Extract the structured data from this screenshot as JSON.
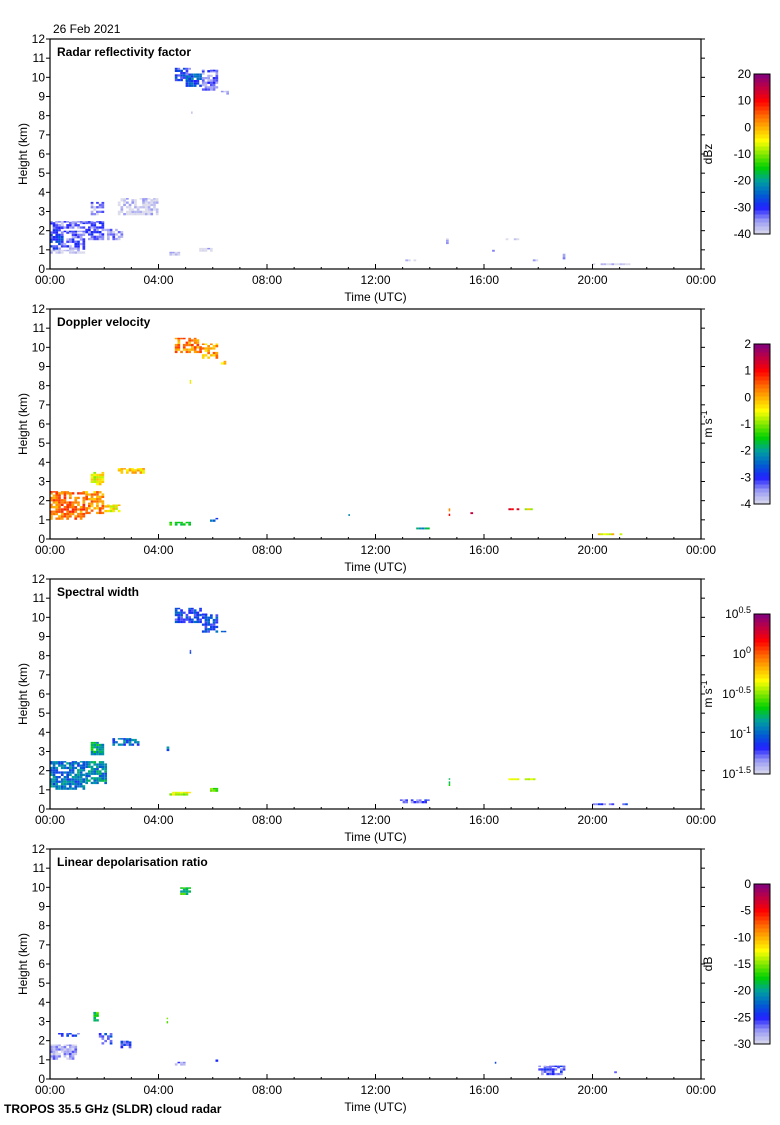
{
  "header": {
    "date": "26 Feb 2021"
  },
  "footer": {
    "instrument": "TROPOS 35.5 GHz (SLDR) cloud radar"
  },
  "colormap": [
    "#dcdcec",
    "#9c9cf4",
    "#2020ff",
    "#0060d0",
    "#00a0a0",
    "#00d000",
    "#80e800",
    "#ffff00",
    "#ffb000",
    "#ff6000",
    "#ff0000",
    "#c00040",
    "#800080"
  ],
  "chart_data": [
    {
      "type": "heatmap",
      "title": "Radar reflectivity factor",
      "xlabel": "Time (UTC)",
      "ylabel": "Height (km)",
      "xlim": [
        0,
        24
      ],
      "ylim": [
        0,
        12
      ],
      "xticks": [
        "00:00",
        "04:00",
        "08:00",
        "12:00",
        "16:00",
        "20:00",
        "00:00"
      ],
      "yticks": [
        "0",
        "1",
        "2",
        "3",
        "4",
        "5",
        "6",
        "7",
        "8",
        "9",
        "10",
        "11",
        "12"
      ],
      "colorbar": {
        "unit": "dBz",
        "unit_sup": "",
        "range": [
          -40,
          20
        ],
        "ticks": [
          {
            "b": "20",
            "e": ""
          },
          {
            "b": "10",
            "e": ""
          },
          {
            "b": "0",
            "e": ""
          },
          {
            "b": "-10",
            "e": ""
          },
          {
            "b": "-20",
            "e": ""
          },
          {
            "b": "-30",
            "e": ""
          },
          {
            "b": "-40",
            "e": ""
          }
        ]
      },
      "echoes_format": "[time_start_h, time_end_h, height_bottom_km, height_top_km, value]",
      "echoes": [
        [
          4.6,
          5.2,
          9.8,
          10.5,
          -30
        ],
        [
          5.0,
          5.6,
          9.5,
          10.2,
          -26
        ],
        [
          5.6,
          6.2,
          9.3,
          10.4,
          -34
        ],
        [
          6.3,
          6.6,
          9.1,
          9.3,
          -37
        ],
        [
          5.2,
          5.25,
          8.1,
          8.3,
          -35
        ],
        [
          0,
          0.5,
          1.0,
          2.5,
          -30
        ],
        [
          0.5,
          1.3,
          1.0,
          2.0,
          -33
        ],
        [
          0.2,
          1.3,
          2.1,
          2.5,
          -34
        ],
        [
          1.3,
          2.0,
          1.5,
          2.5,
          -33
        ],
        [
          2.0,
          2.7,
          1.5,
          2.1,
          -35
        ],
        [
          1.5,
          2.0,
          2.8,
          3.5,
          -35
        ],
        [
          2.5,
          4.0,
          2.8,
          3.7,
          -39
        ],
        [
          0,
          1.3,
          0.8,
          1.0,
          -39
        ],
        [
          4.4,
          5.0,
          0.7,
          0.9,
          -39
        ],
        [
          5.5,
          6.0,
          0.9,
          1.1,
          -39
        ],
        [
          14.6,
          14.7,
          1.3,
          1.6,
          -38
        ],
        [
          16.8,
          17.3,
          1.5,
          1.6,
          -39
        ],
        [
          17.8,
          18.0,
          0.4,
          0.5,
          -39
        ],
        [
          18.9,
          19.0,
          0.5,
          0.8,
          -36
        ],
        [
          20.0,
          21.4,
          0.2,
          0.3,
          -39
        ],
        [
          13.1,
          13.5,
          0.4,
          0.5,
          -39
        ],
        [
          16.3,
          16.5,
          0.9,
          1.0,
          -38
        ]
      ]
    },
    {
      "type": "heatmap",
      "title": "Doppler velocity",
      "xlabel": "Time (UTC)",
      "ylabel": "Height (km)",
      "xlim": [
        0,
        24
      ],
      "ylim": [
        0,
        12
      ],
      "xticks": [
        "00:00",
        "04:00",
        "08:00",
        "12:00",
        "16:00",
        "20:00",
        "00:00"
      ],
      "yticks": [
        "0",
        "1",
        "2",
        "3",
        "4",
        "5",
        "6",
        "7",
        "8",
        "9",
        "10",
        "11",
        "12"
      ],
      "colorbar": {
        "unit": "m s",
        "unit_sup": "-1",
        "range": [
          -4,
          2
        ],
        "ticks": [
          {
            "b": "2",
            "e": ""
          },
          {
            "b": "1",
            "e": ""
          },
          {
            "b": "0",
            "e": ""
          },
          {
            "b": "-1",
            "e": ""
          },
          {
            "b": "-2",
            "e": ""
          },
          {
            "b": "-3",
            "e": ""
          },
          {
            "b": "-4",
            "e": ""
          }
        ]
      },
      "echoes_format": "[time_start_h, time_end_h, height_bottom_km, height_top_km, value]",
      "echoes": [
        [
          4.6,
          5.6,
          9.7,
          10.5,
          0.3
        ],
        [
          5.6,
          6.2,
          9.4,
          10.2,
          0.1
        ],
        [
          6.3,
          6.5,
          9.1,
          9.3,
          -0.4
        ],
        [
          5.15,
          5.2,
          8.1,
          8.3,
          -0.5
        ],
        [
          0,
          1.3,
          1.0,
          2.5,
          0.4
        ],
        [
          1.3,
          2.0,
          1.3,
          2.5,
          0.2
        ],
        [
          2.0,
          2.6,
          1.4,
          1.8,
          -0.4
        ],
        [
          1.5,
          2.0,
          2.8,
          3.5,
          -0.5
        ],
        [
          2.5,
          3.5,
          3.4,
          3.7,
          -0.2
        ],
        [
          4.4,
          5.2,
          0.7,
          0.9,
          -1.5
        ],
        [
          5.9,
          6.2,
          0.9,
          1.1,
          -2.5
        ],
        [
          14.7,
          14.75,
          1.2,
          1.6,
          0.5
        ],
        [
          15.5,
          15.6,
          1.3,
          1.4,
          1.0
        ],
        [
          16.9,
          17.3,
          1.5,
          1.6,
          1.2
        ],
        [
          17.5,
          17.8,
          1.5,
          1.6,
          -0.5
        ],
        [
          20.0,
          21.3,
          0.2,
          0.3,
          -0.4
        ],
        [
          13.5,
          14.0,
          0.5,
          0.6,
          -2.0
        ],
        [
          11.0,
          11.05,
          1.2,
          1.3,
          -1.8
        ]
      ]
    },
    {
      "type": "heatmap",
      "title": "Spectral width",
      "xlabel": "Time (UTC)",
      "ylabel": "Height (km)",
      "xlim": [
        0,
        24
      ],
      "ylim": [
        0,
        12
      ],
      "xticks": [
        "00:00",
        "04:00",
        "08:00",
        "12:00",
        "16:00",
        "20:00",
        "00:00"
      ],
      "yticks": [
        "0",
        "1",
        "2",
        "3",
        "4",
        "5",
        "6",
        "7",
        "8",
        "9",
        "10",
        "11",
        "12"
      ],
      "colorbar": {
        "unit": "m s",
        "unit_sup": "-1",
        "scale": "log10",
        "range": [
          -1.5,
          0.5
        ],
        "ticks": [
          {
            "b": "10",
            "e": "0.5"
          },
          {
            "b": "10",
            "e": "0"
          },
          {
            "b": "10",
            "e": "-0.5"
          },
          {
            "b": "10",
            "e": "-1"
          },
          {
            "b": "10",
            "e": "-1.5"
          }
        ]
      },
      "echoes_format": "[time_start_h, time_end_h, height_bottom_km, height_top_km, log10_value]",
      "echoes": [
        [
          4.6,
          5.6,
          9.7,
          10.5,
          -1.1
        ],
        [
          5.6,
          6.2,
          9.2,
          10.2,
          -1.1
        ],
        [
          6.3,
          6.5,
          9.1,
          9.3,
          -1.1
        ],
        [
          5.15,
          5.2,
          8.1,
          8.3,
          -1.1
        ],
        [
          0,
          1.3,
          1.0,
          2.5,
          -0.95
        ],
        [
          1.3,
          2.1,
          1.3,
          2.5,
          -0.9
        ],
        [
          1.5,
          2.0,
          2.8,
          3.5,
          -0.8
        ],
        [
          2.3,
          3.3,
          3.3,
          3.7,
          -1.0
        ],
        [
          4.4,
          5.2,
          0.7,
          0.9,
          -0.4
        ],
        [
          5.9,
          6.2,
          0.9,
          1.1,
          -0.5
        ],
        [
          14.7,
          14.75,
          1.2,
          1.6,
          -0.8
        ],
        [
          16.9,
          17.9,
          1.5,
          1.6,
          -0.4
        ],
        [
          20.0,
          21.3,
          0.2,
          0.3,
          -1.2
        ],
        [
          12.9,
          14.0,
          0.3,
          0.5,
          -1.2
        ],
        [
          4.3,
          4.4,
          2.9,
          3.3,
          -1.0
        ]
      ]
    },
    {
      "type": "heatmap",
      "title": "Linear depolarisation ratio",
      "xlabel": "Time (UTC)",
      "ylabel": "Height (km)",
      "xlim": [
        0,
        24
      ],
      "ylim": [
        0,
        12
      ],
      "xticks": [
        "00:00",
        "04:00",
        "08:00",
        "12:00",
        "16:00",
        "20:00",
        "00:00"
      ],
      "yticks": [
        "0",
        "1",
        "2",
        "3",
        "4",
        "5",
        "6",
        "7",
        "8",
        "9",
        "10",
        "11",
        "12"
      ],
      "colorbar": {
        "unit": "dB",
        "unit_sup": "",
        "range": [
          -30,
          0
        ],
        "ticks": [
          {
            "b": "0",
            "e": ""
          },
          {
            "b": "-5",
            "e": ""
          },
          {
            "b": "-10",
            "e": ""
          },
          {
            "b": "-15",
            "e": ""
          },
          {
            "b": "-20",
            "e": ""
          },
          {
            "b": "-25",
            "e": ""
          },
          {
            "b": "-30",
            "e": ""
          }
        ]
      },
      "echoes_format": "[time_start_h, time_end_h, height_bottom_km, height_top_km, value]",
      "echoes": [
        [
          0,
          1.0,
          1.0,
          1.8,
          -28
        ],
        [
          0.3,
          1.1,
          2.2,
          2.4,
          -25
        ],
        [
          1.6,
          1.8,
          3.0,
          3.5,
          -17
        ],
        [
          1.8,
          2.3,
          1.8,
          2.4,
          -25
        ],
        [
          2.6,
          3.0,
          1.6,
          2.0,
          -25
        ],
        [
          4.3,
          4.35,
          2.9,
          3.2,
          -17
        ],
        [
          4.8,
          5.2,
          9.6,
          10.0,
          -18
        ],
        [
          4.6,
          5.0,
          0.7,
          0.9,
          -27
        ],
        [
          6.1,
          6.2,
          0.9,
          1.1,
          -25
        ],
        [
          16.4,
          16.45,
          0.8,
          0.9,
          -25
        ],
        [
          18.0,
          19.0,
          0.2,
          0.7,
          -26
        ],
        [
          20.8,
          20.9,
          0.3,
          0.4,
          -25
        ]
      ]
    }
  ]
}
